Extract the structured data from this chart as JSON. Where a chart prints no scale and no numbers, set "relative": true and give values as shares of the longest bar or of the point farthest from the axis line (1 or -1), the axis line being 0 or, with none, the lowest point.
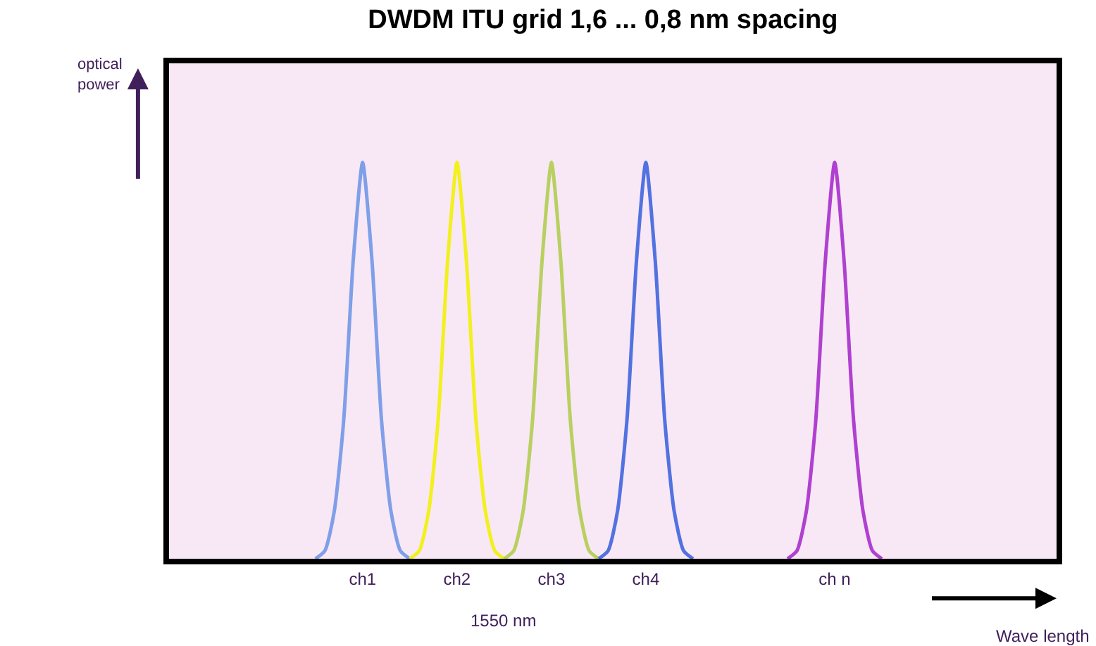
{
  "chart_data": {
    "type": "line",
    "title": "DWDM ITU grid 1,6 ... 0,8 nm spacing",
    "xlabel": "Wave length",
    "annotations": [
      "optical power",
      "1550 nm"
    ],
    "relative": true,
    "legend": false,
    "grid": false,
    "marker": "none",
    "line_style": "solid",
    "categories": [
      null,
      null,
      null,
      null,
      null,
      null,
      null,
      null,
      null,
      null,
      null,
      null,
      null,
      null,
      null,
      null,
      null,
      null,
      null,
      null,
      "ch1",
      null,
      null,
      null,
      null,
      null,
      null,
      null,
      null,
      null,
      "ch2",
      null,
      null,
      null,
      null,
      null,
      null,
      null,
      null,
      null,
      "ch3",
      null,
      null,
      null,
      null,
      null,
      null,
      null,
      null,
      null,
      "ch4",
      null,
      null,
      null,
      null,
      null,
      null,
      null,
      null,
      null,
      null,
      null,
      null,
      null,
      null,
      null,
      null,
      null,
      null,
      null,
      "ch n",
      null,
      null,
      null,
      null,
      null,
      null,
      null,
      null,
      null,
      null,
      null,
      null,
      null,
      null,
      null,
      null,
      null,
      null,
      null,
      null,
      null,
      null,
      null
    ],
    "series": [
      {
        "color": "#7f9fe8",
        "values": [
          null,
          null,
          null,
          null,
          null,
          null,
          null,
          null,
          null,
          null,
          null,
          null,
          null,
          null,
          null,
          0,
          0.02,
          0.12,
          0.35,
          0.75,
          1,
          0.75,
          0.35,
          0.12,
          0.02,
          0,
          null,
          null,
          null,
          null,
          null,
          null,
          null,
          null,
          null,
          null,
          null,
          null,
          null,
          null,
          null,
          null,
          null,
          null,
          null,
          null,
          null,
          null,
          null,
          null,
          null,
          null,
          null,
          null,
          null,
          null,
          null,
          null,
          null,
          null,
          null,
          null,
          null,
          null,
          null,
          null,
          null,
          null,
          null,
          null,
          null,
          null,
          null,
          null,
          null,
          null,
          null,
          null,
          null,
          null,
          null,
          null,
          null,
          null,
          null,
          null,
          null,
          null,
          null,
          null,
          null,
          null,
          null,
          null
        ]
      },
      {
        "color": "#f2f01e",
        "values": [
          null,
          null,
          null,
          null,
          null,
          null,
          null,
          null,
          null,
          null,
          null,
          null,
          null,
          null,
          null,
          null,
          null,
          null,
          null,
          null,
          null,
          null,
          null,
          null,
          null,
          0,
          0.02,
          0.12,
          0.35,
          0.75,
          1,
          0.75,
          0.35,
          0.12,
          0.02,
          0,
          null,
          null,
          null,
          null,
          null,
          null,
          null,
          null,
          null,
          null,
          null,
          null,
          null,
          null,
          null,
          null,
          null,
          null,
          null,
          null,
          null,
          null,
          null,
          null,
          null,
          null,
          null,
          null,
          null,
          null,
          null,
          null,
          null,
          null,
          null,
          null,
          null,
          null,
          null,
          null,
          null,
          null,
          null,
          null,
          null,
          null,
          null,
          null,
          null,
          null,
          null,
          null,
          null,
          null,
          null,
          null,
          null,
          null
        ]
      },
      {
        "color": "#b8d060",
        "values": [
          null,
          null,
          null,
          null,
          null,
          null,
          null,
          null,
          null,
          null,
          null,
          null,
          null,
          null,
          null,
          null,
          null,
          null,
          null,
          null,
          null,
          null,
          null,
          null,
          null,
          null,
          null,
          null,
          null,
          null,
          null,
          null,
          null,
          null,
          null,
          0,
          0.02,
          0.12,
          0.35,
          0.75,
          1,
          0.75,
          0.35,
          0.12,
          0.02,
          0,
          null,
          null,
          null,
          null,
          null,
          null,
          null,
          null,
          null,
          null,
          null,
          null,
          null,
          null,
          null,
          null,
          null,
          null,
          null,
          null,
          null,
          null,
          null,
          null,
          null,
          null,
          null,
          null,
          null,
          null,
          null,
          null,
          null,
          null,
          null,
          null,
          null,
          null,
          null,
          null,
          null,
          null,
          null,
          null,
          null,
          null,
          null,
          null
        ]
      },
      {
        "color": "#5272e0",
        "values": [
          null,
          null,
          null,
          null,
          null,
          null,
          null,
          null,
          null,
          null,
          null,
          null,
          null,
          null,
          null,
          null,
          null,
          null,
          null,
          null,
          null,
          null,
          null,
          null,
          null,
          null,
          null,
          null,
          null,
          null,
          null,
          null,
          null,
          null,
          null,
          null,
          null,
          null,
          null,
          null,
          null,
          null,
          null,
          null,
          null,
          0,
          0.02,
          0.12,
          0.35,
          0.75,
          1,
          0.75,
          0.35,
          0.12,
          0.02,
          0,
          null,
          null,
          null,
          null,
          null,
          null,
          null,
          null,
          null,
          null,
          null,
          null,
          null,
          null,
          null,
          null,
          null,
          null,
          null,
          null,
          null,
          null,
          null,
          null,
          null,
          null,
          null,
          null,
          null,
          null,
          null,
          null,
          null,
          null,
          null,
          null,
          null,
          null
        ]
      },
      {
        "color": "#b040d0",
        "values": [
          null,
          null,
          null,
          null,
          null,
          null,
          null,
          null,
          null,
          null,
          null,
          null,
          null,
          null,
          null,
          null,
          null,
          null,
          null,
          null,
          null,
          null,
          null,
          null,
          null,
          null,
          null,
          null,
          null,
          null,
          null,
          null,
          null,
          null,
          null,
          null,
          null,
          null,
          null,
          null,
          null,
          null,
          null,
          null,
          null,
          null,
          null,
          null,
          null,
          null,
          null,
          null,
          null,
          null,
          null,
          null,
          null,
          null,
          null,
          null,
          null,
          null,
          null,
          null,
          null,
          0,
          0.02,
          0.12,
          0.35,
          0.75,
          1,
          0.75,
          0.35,
          0.12,
          0.02,
          0,
          null,
          null,
          null,
          null,
          null,
          null,
          null,
          null,
          null,
          null,
          null,
          null,
          null,
          null,
          null,
          null,
          null,
          null
        ]
      }
    ]
  }
}
